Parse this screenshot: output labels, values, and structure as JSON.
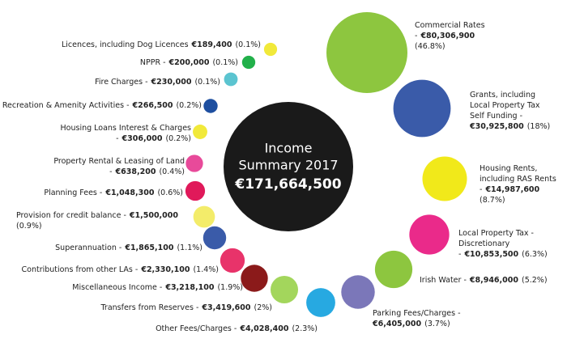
{
  "chart_data": {
    "type": "bubble",
    "title_lines": [
      "Income",
      "Summary 2017"
    ],
    "total": 171664500,
    "total_label": "€171,664,500",
    "items": [
      {
        "name_parts": [
          "Commercial Rates",
          "-"
        ],
        "value": 80306900,
        "value_label": "€80,306,900",
        "percent": 46.8,
        "percent_label": "(46.8%)",
        "color": "#8dc63f"
      },
      {
        "name_parts": [
          "Grants, including",
          "Local Property Tax",
          "Self Funding -"
        ],
        "value": 30925800,
        "value_label": "€30,925,800",
        "percent": 18,
        "percent_label": "(18%)",
        "color": "#3a5ba9"
      },
      {
        "name_parts": [
          "Housing Rents,",
          "including RAS Rents",
          "-"
        ],
        "value": 14987600,
        "value_label": "€14,987,600",
        "percent": 8.7,
        "percent_label": "(8.7%)",
        "color": "#f1e91a"
      },
      {
        "name_parts": [
          "Local Property Tax -",
          "Discretionary",
          "-"
        ],
        "value": 10853500,
        "value_label": "€10,853,500",
        "percent": 6.3,
        "percent_label": "(6.3%)",
        "color": "#ea2a8a"
      },
      {
        "name_parts": [
          "Irish Water -"
        ],
        "value": 8946000,
        "value_label": "€8,946,000",
        "percent": 5.2,
        "percent_label": "(5.2%)",
        "color": "#8dc63f"
      },
      {
        "name_parts": [
          "Parking Fees/Charges -"
        ],
        "value": 6405000,
        "value_label": "€6,405,000",
        "percent": 3.7,
        "percent_label": "(3.7%)",
        "color": "#7b77b9"
      },
      {
        "name_parts": [
          "Other Fees/Charges -"
        ],
        "value": 4028400,
        "value_label": "€4,028,400",
        "percent": 2.3,
        "percent_label": "(2.3%)",
        "color": "#27a9e1"
      },
      {
        "name_parts": [
          "Transfers from Reserves -"
        ],
        "value": 3419600,
        "value_label": "€3,419,600",
        "percent": 2,
        "percent_label": "(2%)",
        "color": "#a3d65c"
      },
      {
        "name_parts": [
          "Miscellaneous Income -"
        ],
        "value": 3218100,
        "value_label": "€3,218,100",
        "percent": 1.9,
        "percent_label": "(1.9%)",
        "color": "#8b1a1a"
      },
      {
        "name_parts": [
          "Contributions from other LAs -"
        ],
        "value": 2330100,
        "value_label": "€2,330,100",
        "percent": 1.4,
        "percent_label": "(1.4%)",
        "color": "#e8336a"
      },
      {
        "name_parts": [
          "Superannuation -"
        ],
        "value": 1865100,
        "value_label": "€1,865,100",
        "percent": 1.1,
        "percent_label": "(1.1%)",
        "color": "#3a5ba9"
      },
      {
        "name_parts": [
          "Provision for credit balance -"
        ],
        "value": 1500000,
        "value_label": "€1,500,000",
        "percent": 0.9,
        "percent_label": "(0.9%)",
        "color": "#f3ec6a"
      },
      {
        "name_parts": [
          "Planning Fees -"
        ],
        "value": 1048300,
        "value_label": "€1,048,300",
        "percent": 0.6,
        "percent_label": "(0.6%)",
        "color": "#e0195a"
      },
      {
        "name_parts": [
          "Property Rental & Leasing of Land",
          "-"
        ],
        "value": 638200,
        "value_label": "€638,200",
        "percent": 0.4,
        "percent_label": "(0.4%)",
        "color": "#e84a9a"
      },
      {
        "name_parts": [
          "Housing Loans Interest & Charges",
          "-"
        ],
        "value": 306000,
        "value_label": "€306,000",
        "percent": 0.2,
        "percent_label": "(0.2%)",
        "color": "#f1e93a"
      },
      {
        "name_parts": [
          "Recreation & Amenity Activities -"
        ],
        "value": 266500,
        "value_label": "€266,500",
        "percent": 0.2,
        "percent_label": "(0.2%)",
        "color": "#1e4fa0"
      },
      {
        "name_parts": [
          "Fire Charges -"
        ],
        "value": 230000,
        "value_label": "€230,000",
        "percent": 0.1,
        "percent_label": "(0.1%)",
        "color": "#5bc4d0"
      },
      {
        "name_parts": [
          "NPPR -"
        ],
        "value": 200000,
        "value_label": "€200,000",
        "percent": 0.1,
        "percent_label": "(0.1%)",
        "color": "#22b04a"
      },
      {
        "name_parts": [
          "Licences, including Dog Licences"
        ],
        "value": 189400,
        "value_label": "€189,400",
        "percent": 0.1,
        "percent_label": "(0.1%)",
        "color": "#f1e93a"
      }
    ]
  }
}
